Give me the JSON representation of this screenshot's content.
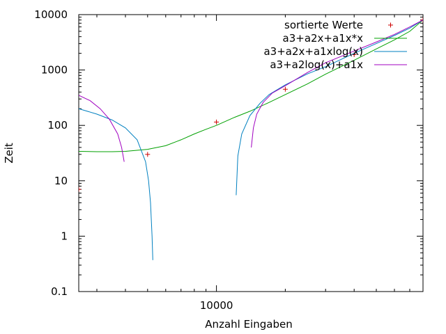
{
  "chart_data": {
    "type": "line",
    "title": "",
    "xlabel": "Anzahl Eingaben",
    "ylabel": "Zeit",
    "x_scale": "log",
    "y_scale": "log",
    "xlim": [
      2500,
      80000
    ],
    "ylim": [
      0.1,
      10000
    ],
    "grid": false,
    "legend_position": "top-right",
    "x_ticks": [
      {
        "value": 10000,
        "label": "10000"
      }
    ],
    "y_ticks": [
      {
        "value": 0.1,
        "label": "0.1"
      },
      {
        "value": 1,
        "label": "1"
      },
      {
        "value": 10,
        "label": "10"
      },
      {
        "value": 100,
        "label": "100"
      },
      {
        "value": 1000,
        "label": "1000"
      },
      {
        "value": 10000,
        "label": "10000"
      }
    ],
    "series": [
      {
        "name": "sortierte Werte",
        "kind": "points",
        "color": "#cc0000",
        "points": [
          [
            2500,
            7
          ],
          [
            5000,
            30
          ],
          [
            10000,
            115
          ],
          [
            20000,
            450
          ],
          [
            40000,
            1900
          ],
          [
            80000,
            8000
          ]
        ]
      },
      {
        "name": "a3+a2x+a1x*x",
        "kind": "line",
        "color": "#00a000",
        "points": [
          [
            2500,
            34
          ],
          [
            3000,
            33.5
          ],
          [
            3500,
            33.5
          ],
          [
            4000,
            34
          ],
          [
            5000,
            37
          ],
          [
            6000,
            43
          ],
          [
            7000,
            55
          ],
          [
            8000,
            70
          ],
          [
            9000,
            85
          ],
          [
            10000,
            100
          ],
          [
            12000,
            140
          ],
          [
            14000,
            180
          ],
          [
            17000,
            260
          ],
          [
            20000,
            360
          ],
          [
            25000,
            560
          ],
          [
            30000,
            840
          ],
          [
            40000,
            1500
          ],
          [
            50000,
            2400
          ],
          [
            60000,
            3500
          ],
          [
            70000,
            5000
          ],
          [
            80000,
            8000
          ]
        ]
      },
      {
        "name": "a3+a2x+a1xlog(x)",
        "kind": "line",
        "color": "#0080c0",
        "points": [
          [
            2500,
            200
          ],
          [
            3000,
            160
          ],
          [
            3500,
            125
          ],
          [
            4000,
            90
          ],
          [
            4500,
            55
          ],
          [
            4900,
            22
          ],
          [
            5050,
            10
          ],
          [
            5150,
            4
          ],
          [
            5230,
            1
          ],
          [
            5270,
            0.37
          ],
          [
            12200,
            5.5
          ],
          [
            12400,
            28
          ],
          [
            12900,
            70
          ],
          [
            14000,
            150
          ],
          [
            15500,
            250
          ],
          [
            17000,
            360
          ],
          [
            20000,
            540
          ],
          [
            25000,
            850
          ],
          [
            30000,
            1150
          ],
          [
            40000,
            2000
          ],
          [
            50000,
            3000
          ],
          [
            60000,
            4200
          ],
          [
            70000,
            5700
          ],
          [
            80000,
            8000
          ]
        ]
      },
      {
        "name": "a3+a2log(x)+a1x",
        "kind": "line",
        "color": "#a000c0",
        "points": [
          [
            2500,
            350
          ],
          [
            2800,
            280
          ],
          [
            3100,
            200
          ],
          [
            3400,
            130
          ],
          [
            3700,
            70
          ],
          [
            3850,
            40
          ],
          [
            3950,
            22
          ],
          [
            14200,
            40
          ],
          [
            14500,
            90
          ],
          [
            15000,
            160
          ],
          [
            16000,
            260
          ],
          [
            17500,
            380
          ],
          [
            20000,
            520
          ],
          [
            25000,
            900
          ],
          [
            30000,
            1350
          ],
          [
            40000,
            2200
          ],
          [
            50000,
            3200
          ],
          [
            60000,
            4400
          ],
          [
            70000,
            6000
          ],
          [
            80000,
            8000
          ]
        ]
      }
    ]
  }
}
